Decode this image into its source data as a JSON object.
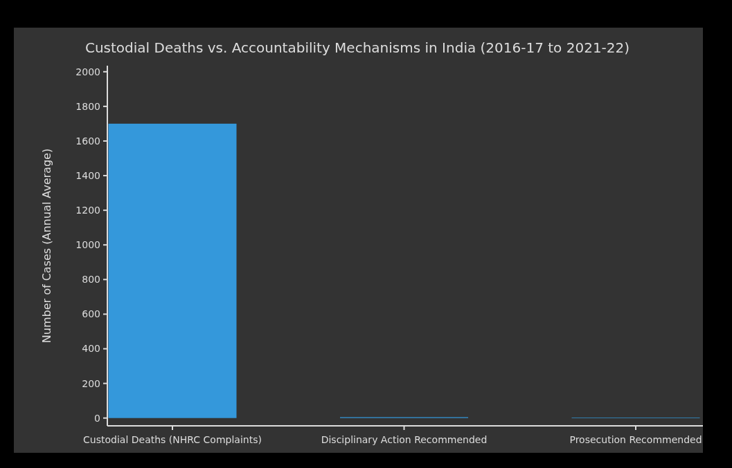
{
  "chart_data": {
    "type": "bar",
    "title": "Custodial Deaths vs. Accountability Mechanisms in India (2016-17 to 2021-22)",
    "ylabel": "Number of Cases (Annual Average)",
    "categories": [
      "Custodial Deaths (NHRC Complaints)",
      "Disciplinary Action Recommended",
      "Prosecution Recommended"
    ],
    "values": [
      1700,
      5,
      3
    ],
    "color": "#3498db",
    "ylim": [
      -45,
      2035
    ],
    "yticks": [
      0,
      200,
      400,
      600,
      800,
      1000,
      1200,
      1400,
      1600,
      1800,
      2000
    ],
    "grid": false
  }
}
